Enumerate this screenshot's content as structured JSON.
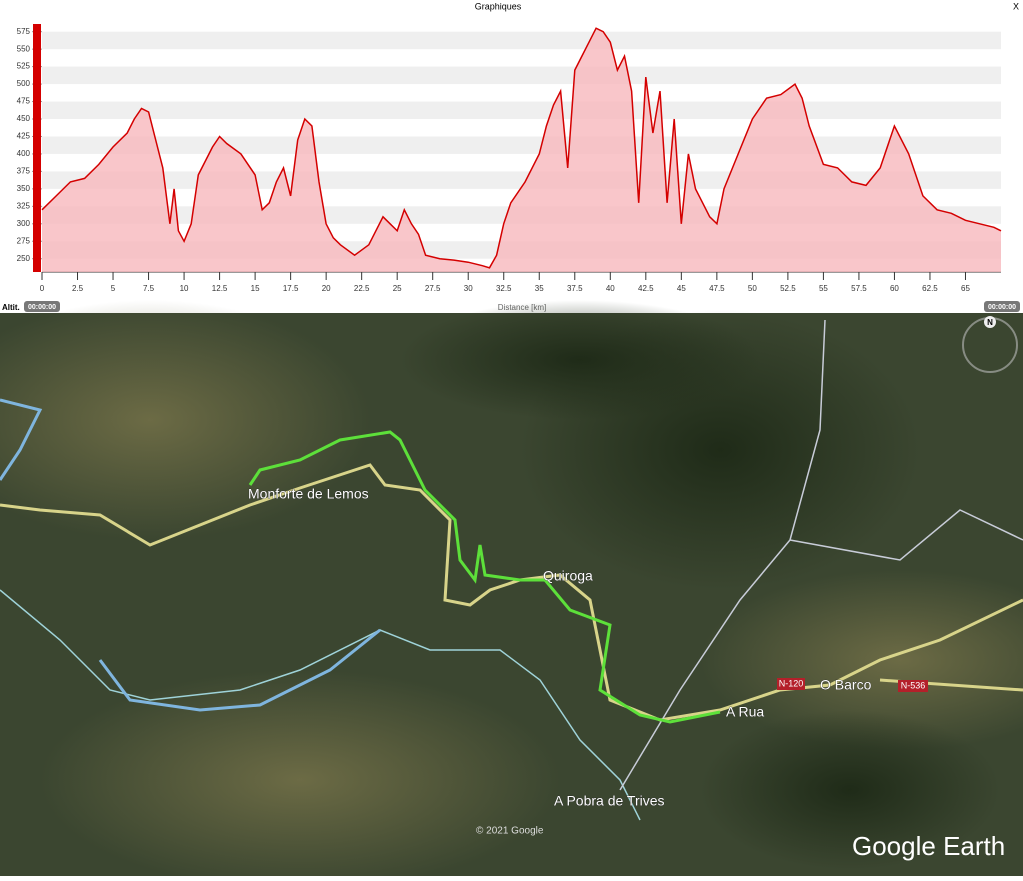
{
  "window": {
    "title": "Graphiques",
    "close": "X",
    "time_start": "00:00:00",
    "time_end": "00:00:00"
  },
  "chart_data": {
    "type": "area",
    "ylabel": "Altit.",
    "xlabel": "Distance [km]",
    "color": "#d40000",
    "fill_color": "#f7b8bd",
    "grid": true,
    "xlim": [
      0,
      67.5
    ],
    "ylim": [
      231,
      586
    ],
    "xticks": [
      0,
      2.5,
      5,
      7.5,
      10,
      12.5,
      15,
      17.5,
      20,
      22.5,
      25,
      27.5,
      30,
      32.5,
      35,
      37.5,
      40,
      42.5,
      45,
      47.5,
      50,
      52.5,
      55,
      57.5,
      60,
      62.5,
      65
    ],
    "yticks": [
      250,
      275,
      300,
      325,
      350,
      375,
      400,
      425,
      450,
      475,
      500,
      525,
      550,
      575
    ],
    "x": [
      0,
      1,
      2,
      3,
      4,
      5,
      6,
      6.5,
      7,
      7.5,
      8,
      8.5,
      9,
      9.3,
      9.6,
      10,
      10.5,
      11,
      12,
      12.5,
      13,
      14,
      15,
      15.5,
      16,
      16.5,
      17,
      17.5,
      18,
      18.5,
      19,
      19.5,
      20,
      20.5,
      21,
      22,
      23,
      24,
      24.5,
      25,
      25.5,
      26,
      26.5,
      27,
      28,
      29,
      30,
      31,
      31.5,
      32,
      32.5,
      33,
      34,
      35,
      35.5,
      36,
      36.5,
      37,
      37.5,
      38,
      38.5,
      39,
      39.5,
      40,
      40.5,
      41,
      41.5,
      42,
      42.5,
      43,
      43.5,
      44,
      44.5,
      45,
      45.5,
      46,
      46.5,
      47,
      47.5,
      48,
      49,
      50,
      51,
      52,
      53,
      53.5,
      54,
      55,
      56,
      57,
      58,
      59,
      60,
      61,
      62,
      63,
      64,
      65,
      66,
      67,
      67.5
    ],
    "values": [
      320,
      340,
      360,
      365,
      385,
      410,
      430,
      450,
      465,
      460,
      420,
      380,
      300,
      350,
      290,
      275,
      300,
      370,
      410,
      425,
      415,
      400,
      370,
      320,
      330,
      360,
      380,
      340,
      420,
      450,
      440,
      360,
      300,
      280,
      270,
      255,
      270,
      310,
      300,
      290,
      320,
      300,
      285,
      255,
      250,
      248,
      245,
      240,
      237,
      255,
      300,
      330,
      360,
      400,
      440,
      470,
      490,
      380,
      520,
      540,
      560,
      580,
      575,
      560,
      520,
      540,
      490,
      330,
      510,
      430,
      490,
      330,
      450,
      300,
      400,
      350,
      330,
      310,
      300,
      350,
      400,
      450,
      480,
      485,
      500,
      480,
      440,
      385,
      380,
      360,
      355,
      380,
      440,
      400,
      340,
      320,
      315,
      305,
      300,
      295,
      290
    ]
  },
  "map": {
    "places": [
      "Monforte de Lemos",
      "Quiroga",
      "A Rua",
      "O Barco",
      "A Pobra de Trives"
    ],
    "roads": [
      "N-120",
      "N-536"
    ],
    "copyright": "© 2021 Google",
    "brand": "Google Earth",
    "compass": "N"
  }
}
